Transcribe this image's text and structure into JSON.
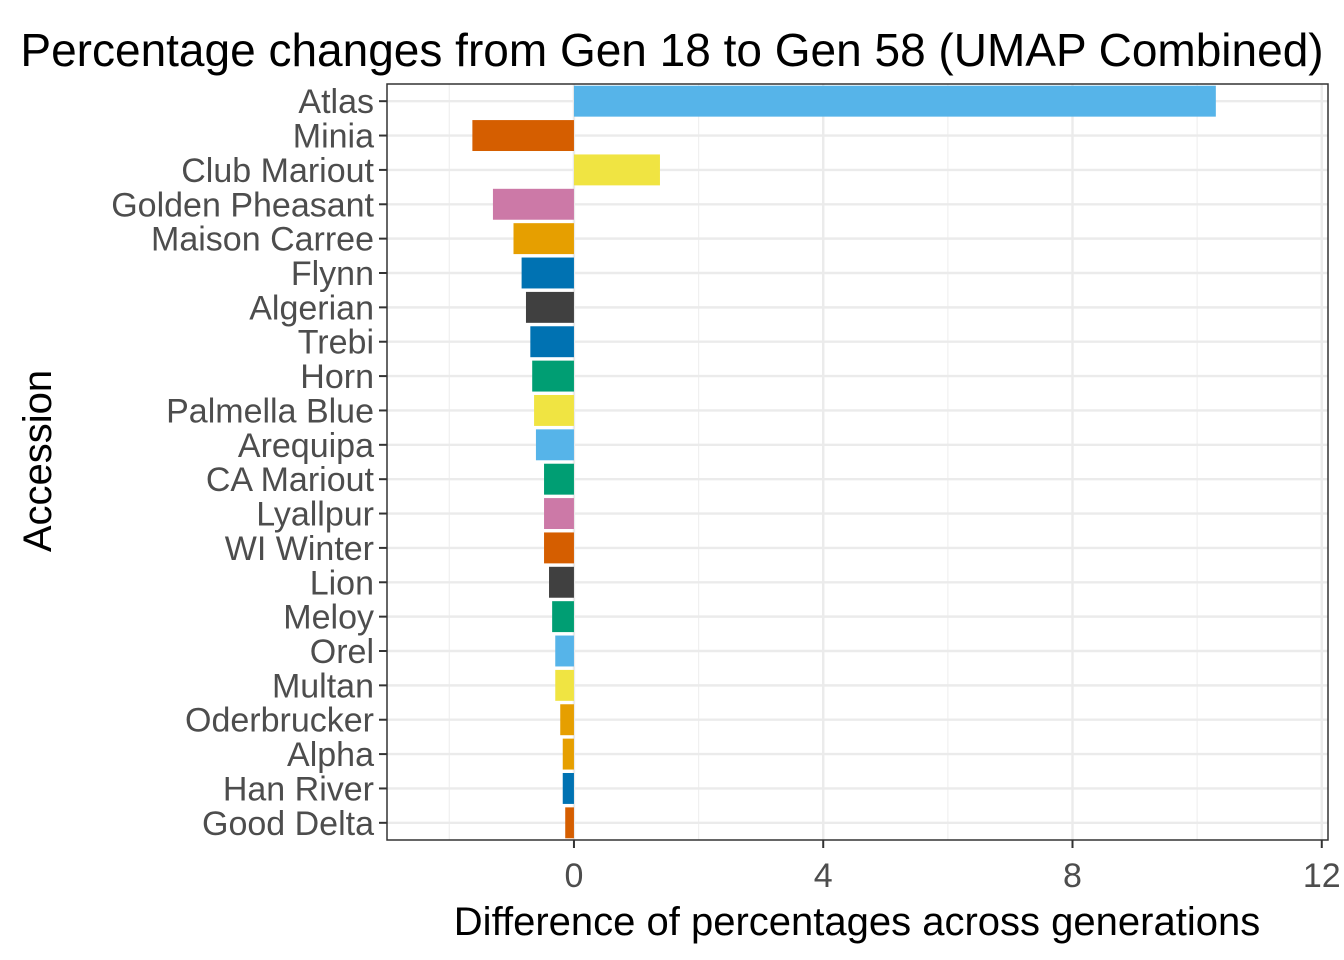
{
  "chart_data": {
    "type": "bar",
    "orientation": "horizontal",
    "title": "Percentage changes from Gen 18 to Gen 58 (UMAP Combined)",
    "xlabel": "Difference of percentages across generations",
    "ylabel": "Accession",
    "xlim": [
      -3.0,
      12.1
    ],
    "xticks": [
      0,
      4,
      8,
      12
    ],
    "grid": true,
    "legend": "none",
    "categories": [
      "Atlas",
      "Minia",
      "Club Mariout",
      "Golden Pheasant",
      "Maison Carree",
      "Flynn",
      "Algerian",
      "Trebi",
      "Horn",
      "Palmella Blue",
      "Arequipa",
      "CA Mariout",
      "Lyallpur",
      "WI Winter",
      "Lion",
      "Meloy",
      "Orel",
      "Multan",
      "Oderbrucker",
      "Alpha",
      "Han River",
      "Good Delta"
    ],
    "values": [
      10.3,
      -1.63,
      1.38,
      -1.3,
      -0.97,
      -0.84,
      -0.77,
      -0.7,
      -0.67,
      -0.64,
      -0.61,
      -0.48,
      -0.48,
      -0.48,
      -0.4,
      -0.35,
      -0.3,
      -0.3,
      -0.22,
      -0.18,
      -0.18,
      -0.14
    ],
    "colors": [
      "#56B4E9",
      "#D55E00",
      "#F0E442",
      "#CC79A7",
      "#E69F00",
      "#0072B2",
      "#404040",
      "#0072B2",
      "#009E73",
      "#F0E442",
      "#56B4E9",
      "#009E73",
      "#CC79A7",
      "#D55E00",
      "#404040",
      "#009E73",
      "#56B4E9",
      "#F0E442",
      "#E69F00",
      "#E69F00",
      "#0072B2",
      "#D55E00"
    ]
  }
}
